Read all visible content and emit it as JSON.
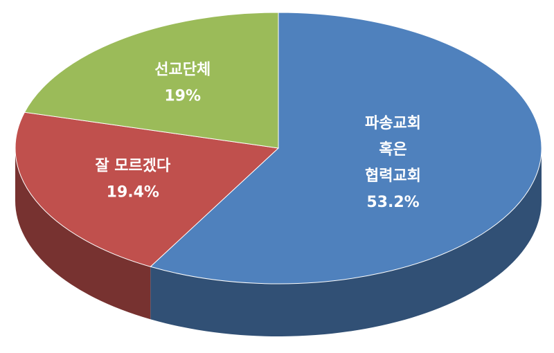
{
  "chart_data": {
    "type": "pie3d",
    "categories": [
      "파송교회\n혹은\n협력교회",
      "잘 모르겠다",
      "선교단체"
    ],
    "values": [
      53.2,
      19.4,
      19
    ],
    "value_labels": [
      "53.2%",
      "19.4%",
      "19%"
    ],
    "colors": [
      "#4f81bd",
      "#c0504d",
      "#9bbb59"
    ]
  }
}
